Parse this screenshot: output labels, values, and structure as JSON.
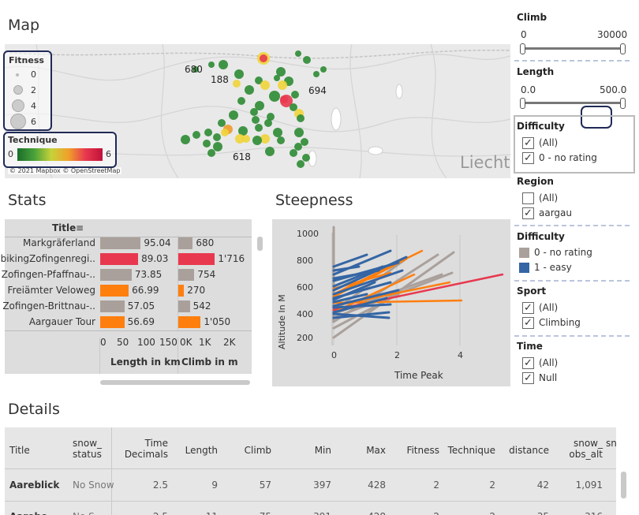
{
  "map": {
    "title": "Map",
    "fitness_label": "Fitness",
    "fitness_sizes": [
      "0",
      "2",
      "4",
      "6"
    ],
    "technique_label": "Technique",
    "technique_min": "0",
    "technique_max": "6",
    "labels": [
      "680",
      "188",
      "694",
      "618"
    ],
    "attribution": "© 2021 Mapbox © OpenStreetMap",
    "place": "Liecht",
    "colors": {
      "green": "#2e8b34",
      "red": "#e8384f",
      "orange": "#f09a2b",
      "yellow": "#f0d43a"
    }
  },
  "stats": {
    "title": "Stats",
    "header_title": "Title",
    "rows": [
      {
        "title": "Markgräferland",
        "length": "95.04",
        "climb": "680",
        "length_val": 95.04,
        "climb_val": 680,
        "color": "#aaa09b"
      },
      {
        "title": "bikingZofingenregi..",
        "length": "89.03",
        "climb": "1'716",
        "length_val": 89.03,
        "climb_val": 1716,
        "color": "#e8384f"
      },
      {
        "title": "Zofingen-Pfaffnau-..",
        "length": "73.85",
        "climb": "754",
        "length_val": 73.85,
        "climb_val": 754,
        "color": "#aaa09b"
      },
      {
        "title": "Freiämter Veloweg",
        "length": "66.99",
        "climb": "270",
        "length_val": 66.99,
        "climb_val": 270,
        "color": "#ff7f0e"
      },
      {
        "title": "Zofingen-Brittnau-..",
        "length": "57.05",
        "climb": "542",
        "length_val": 57.05,
        "climb_val": 542,
        "color": "#aaa09b"
      },
      {
        "title": "Aargauer Tour",
        "length": "56.69",
        "climb": "1'050",
        "length_val": 56.69,
        "climb_val": 1050,
        "color": "#ff7f0e"
      }
    ],
    "length_ticks": [
      "0",
      "50",
      "100",
      "150"
    ],
    "climb_ticks": [
      "0K",
      "1K",
      "2K"
    ],
    "length_label": "Length in km",
    "climb_label": "Climb in m"
  },
  "steepness": {
    "title": "Steepness",
    "ylabel": "Altitude In M",
    "xlabel": "Time Peak",
    "yticks": [
      "1000",
      "800",
      "600",
      "400",
      "200"
    ],
    "xticks": [
      "0",
      "2",
      "4"
    ]
  },
  "filters": {
    "climb": {
      "label": "Climb",
      "min": "0",
      "max": "30000"
    },
    "length": {
      "label": "Length",
      "min": "0.0",
      "max": "500.0"
    },
    "difficulty": {
      "label": "Difficulty",
      "items": [
        {
          "label": "(All)",
          "checked": true
        },
        {
          "label": "0 - no rating",
          "checked": true
        }
      ]
    },
    "region": {
      "label": "Region",
      "items": [
        {
          "label": "(All)",
          "checked": false
        },
        {
          "label": "aargau",
          "checked": true
        }
      ]
    },
    "difficulty_legend": {
      "label": "Difficulty",
      "items": [
        {
          "label": "0 - no rating",
          "color": "#aaa09b"
        },
        {
          "label": "1 - easy",
          "color": "#3465a4"
        }
      ]
    },
    "sport": {
      "label": "Sport",
      "items": [
        {
          "label": "(All)",
          "checked": true
        },
        {
          "label": "Climbing",
          "checked": true
        }
      ]
    },
    "time": {
      "label": "Time",
      "items": [
        {
          "label": "(All)",
          "checked": true
        },
        {
          "label": "Null",
          "checked": true
        }
      ]
    }
  },
  "details": {
    "title": "Details",
    "headers": [
      "Title",
      "snow_\nstatus",
      "Time\nDecimals",
      "Length",
      "Climb",
      "Min",
      "Max",
      "Fitness",
      "Technique",
      "distance",
      "snow_\nobs_alt",
      "sn"
    ],
    "rows": [
      [
        "Aareblick",
        "No Snow",
        "2.5",
        "9",
        "57",
        "397",
        "428",
        "2",
        "2",
        "42",
        "1,091"
      ],
      [
        "Aareho",
        "No S",
        "2.5",
        "11",
        "75",
        "391",
        "428",
        "2",
        "2",
        "35",
        "316"
      ]
    ]
  }
}
